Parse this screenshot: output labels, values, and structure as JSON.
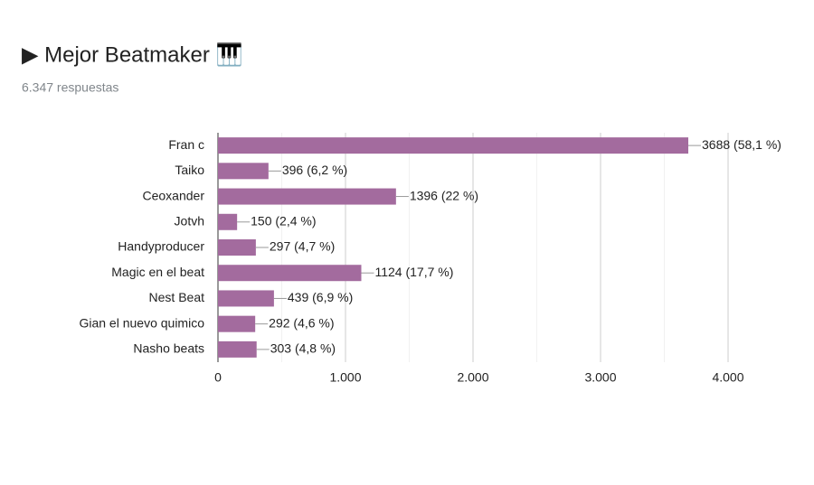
{
  "chart_data": {
    "type": "bar",
    "orientation": "horizontal",
    "title": "▶ Mejor Beatmaker 🎹",
    "subtitle": "6.347 respuestas",
    "categories": [
      "Fran c",
      "Taiko",
      "Ceoxander",
      "Jotvh",
      "Handyproducer",
      "Magic en el beat",
      "Nest Beat",
      "Gian el nuevo quimico",
      "Nasho beats"
    ],
    "values": [
      3688,
      396,
      1396,
      150,
      297,
      1124,
      439,
      292,
      303
    ],
    "value_labels": [
      "3688 (58,1 %)",
      "396 (6,2 %)",
      "1396 (22 %)",
      "150 (2,4 %)",
      "297 (4,7 %)",
      "1124 (17,7 %)",
      "439 (6,9 %)",
      "292 (4,6 %)",
      "303 (4,8 %)"
    ],
    "color": "#a36b9e",
    "xlim": [
      0,
      4000
    ],
    "xticks": [
      0,
      {
        "value": 1000,
        "label": "1.000"
      },
      {
        "value": 2000,
        "label": "2.000"
      },
      {
        "value": 3000,
        "label": "3.000"
      },
      {
        "value": 4000,
        "label": "4.000"
      }
    ],
    "minor_gridlines": [
      500,
      1500,
      2500,
      3500
    ],
    "grid": true
  }
}
